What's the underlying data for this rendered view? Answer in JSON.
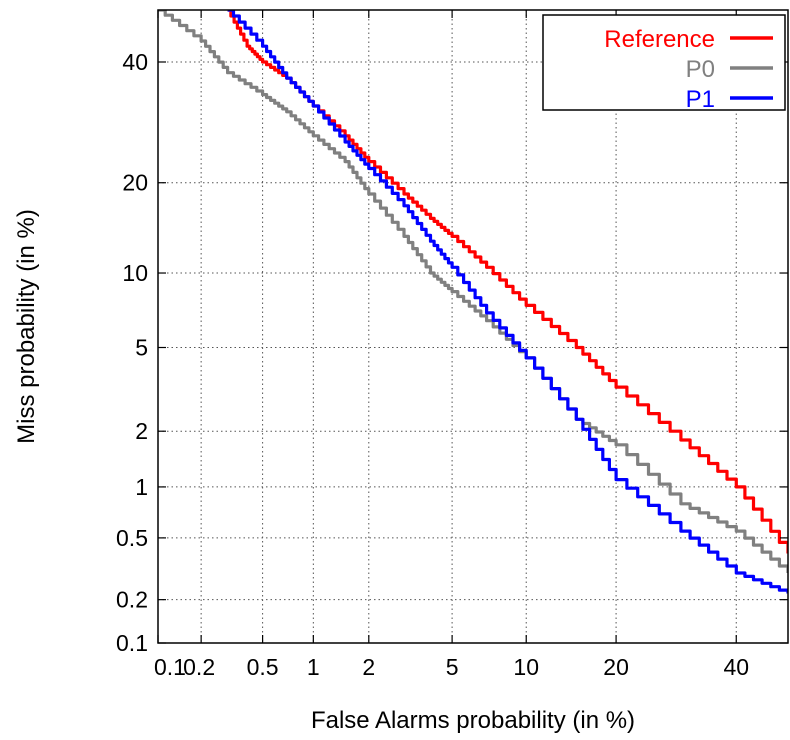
{
  "chart_data": {
    "type": "line",
    "scale": "normal-deviate (DET)",
    "xlabel": "False Alarms probability (in %)",
    "ylabel": "Miss probability (in %)",
    "xlim": [
      0.1,
      50
    ],
    "ylim": [
      0.1,
      50
    ],
    "x_ticks": [
      0.1,
      0.2,
      0.5,
      1,
      2,
      5,
      10,
      20,
      40
    ],
    "x_tick_labels": [
      "0.1",
      "0.2",
      "0.5",
      "1",
      "2",
      "5",
      "10",
      "20",
      "40"
    ],
    "y_ticks": [
      0.1,
      0.2,
      0.5,
      1,
      2,
      5,
      10,
      20,
      40
    ],
    "y_tick_labels": [
      "0.1",
      "0.2",
      "0.5",
      "1",
      "2",
      "5",
      "10",
      "20",
      "40"
    ],
    "grid": true,
    "legend_position": "top-right",
    "series": [
      {
        "name": "Reference",
        "color": "#ff0000",
        "points": [
          [
            0.3,
            50
          ],
          [
            0.4,
            43
          ],
          [
            0.5,
            40
          ],
          [
            0.7,
            37
          ],
          [
            1,
            32
          ],
          [
            1.5,
            27
          ],
          [
            2,
            23
          ],
          [
            3,
            18.5
          ],
          [
            4,
            15.5
          ],
          [
            5,
            13.5
          ],
          [
            7,
            10.5
          ],
          [
            10,
            7.5
          ],
          [
            15,
            5
          ],
          [
            20,
            3.3
          ],
          [
            30,
            1.8
          ],
          [
            40,
            1.0
          ],
          [
            50,
            0.4
          ]
        ]
      },
      {
        "name": "P0",
        "color": "#808080",
        "points": [
          [
            0.1,
            50
          ],
          [
            0.2,
            44
          ],
          [
            0.3,
            38
          ],
          [
            0.5,
            34
          ],
          [
            0.7,
            31
          ],
          [
            1,
            27
          ],
          [
            1.5,
            23
          ],
          [
            2,
            18.5
          ],
          [
            3,
            13.5
          ],
          [
            4,
            10
          ],
          [
            5,
            8.5
          ],
          [
            7,
            6.5
          ],
          [
            10,
            4.5
          ],
          [
            15,
            2.3
          ],
          [
            20,
            1.7
          ],
          [
            30,
            0.8
          ],
          [
            40,
            0.55
          ],
          [
            50,
            0.3
          ]
        ]
      },
      {
        "name": "P1",
        "color": "#0000ff",
        "points": [
          [
            0.3,
            50
          ],
          [
            0.5,
            43
          ],
          [
            0.7,
            37
          ],
          [
            1,
            32
          ],
          [
            1.5,
            26
          ],
          [
            2,
            22
          ],
          [
            3,
            17
          ],
          [
            4,
            13
          ],
          [
            5,
            10.5
          ],
          [
            7,
            7
          ],
          [
            10,
            4.5
          ],
          [
            15,
            2.3
          ],
          [
            20,
            1.1
          ],
          [
            30,
            0.55
          ],
          [
            40,
            0.3
          ],
          [
            50,
            0.22
          ]
        ]
      }
    ]
  }
}
